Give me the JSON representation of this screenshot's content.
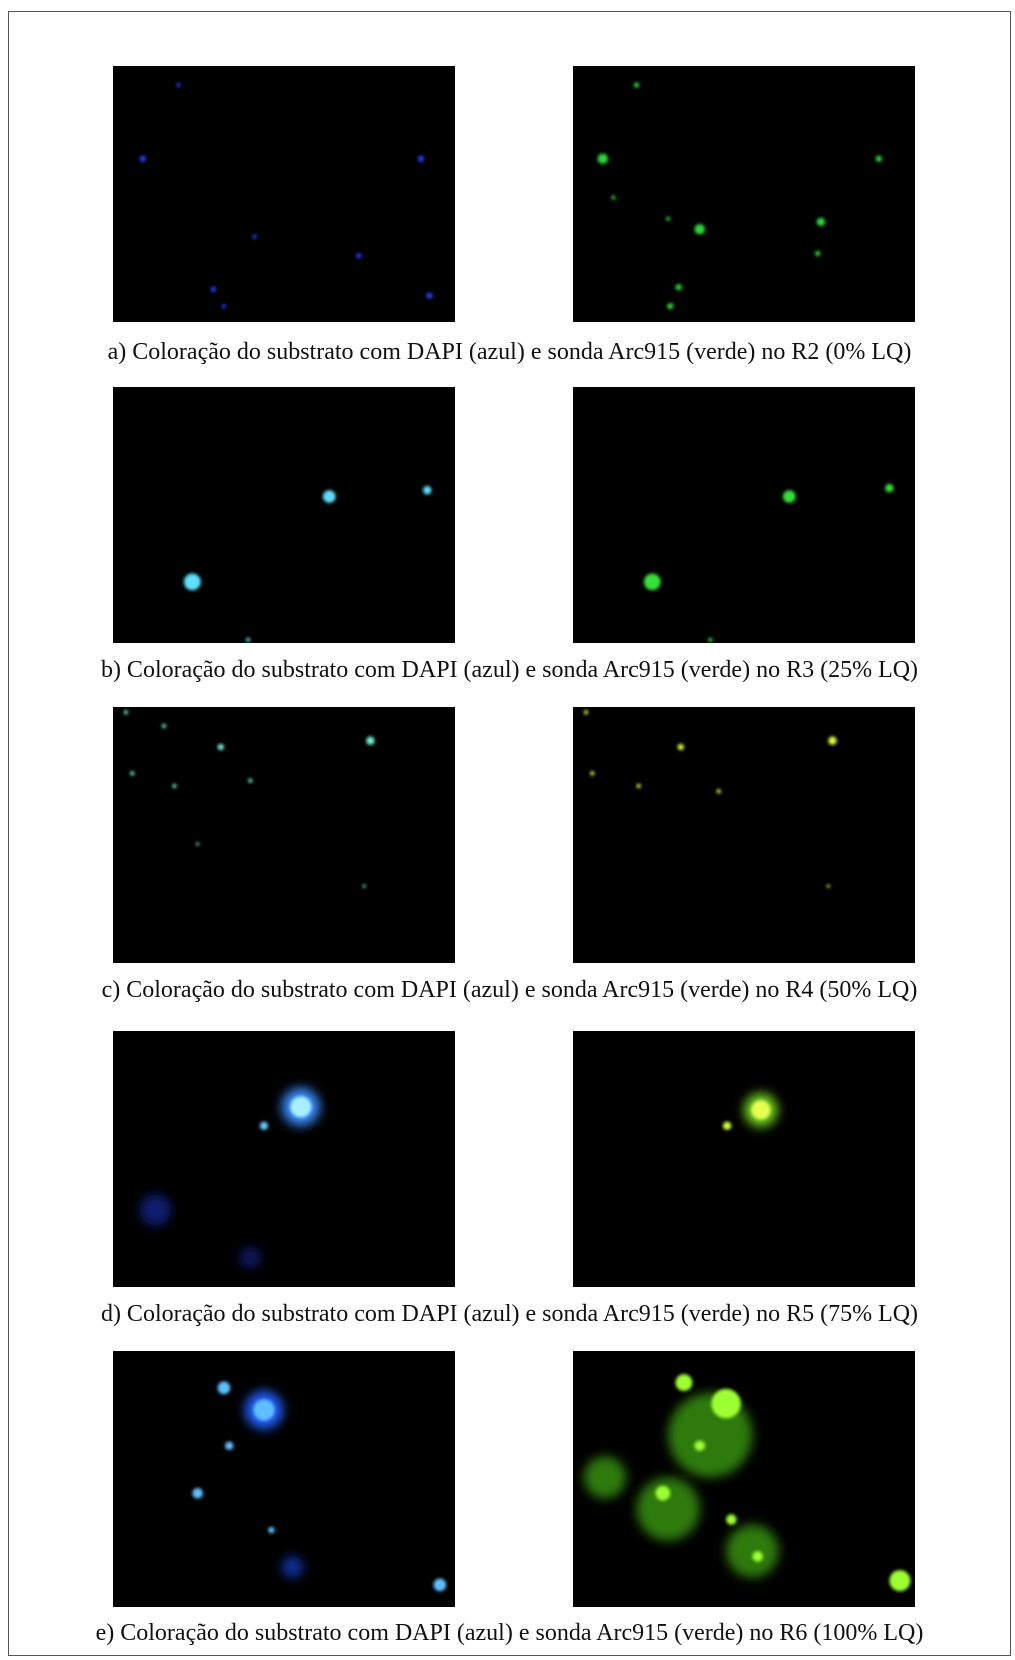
{
  "figure": {
    "panels": [
      {
        "caption": "a) Coloração do substrato com DAPI (azul) e sonda Arc915 (verde) no R2 (0% LQ)"
      },
      {
        "caption": "b) Coloração do substrato com DAPI (azul) e sonda Arc915 (verde) no R3 (25% LQ)"
      },
      {
        "caption": "c) Coloração do substrato com DAPI (azul) e sonda Arc915 (verde) no R4 (50% LQ)"
      },
      {
        "caption": "d) Coloração do substrato com DAPI (azul) e sonda Arc915 (verde) no R5 (75% LQ)"
      },
      {
        "caption": "e) Coloração do substrato com DAPI (azul) e sonda Arc915 (verde) no R6 (100% LQ)"
      }
    ]
  }
}
